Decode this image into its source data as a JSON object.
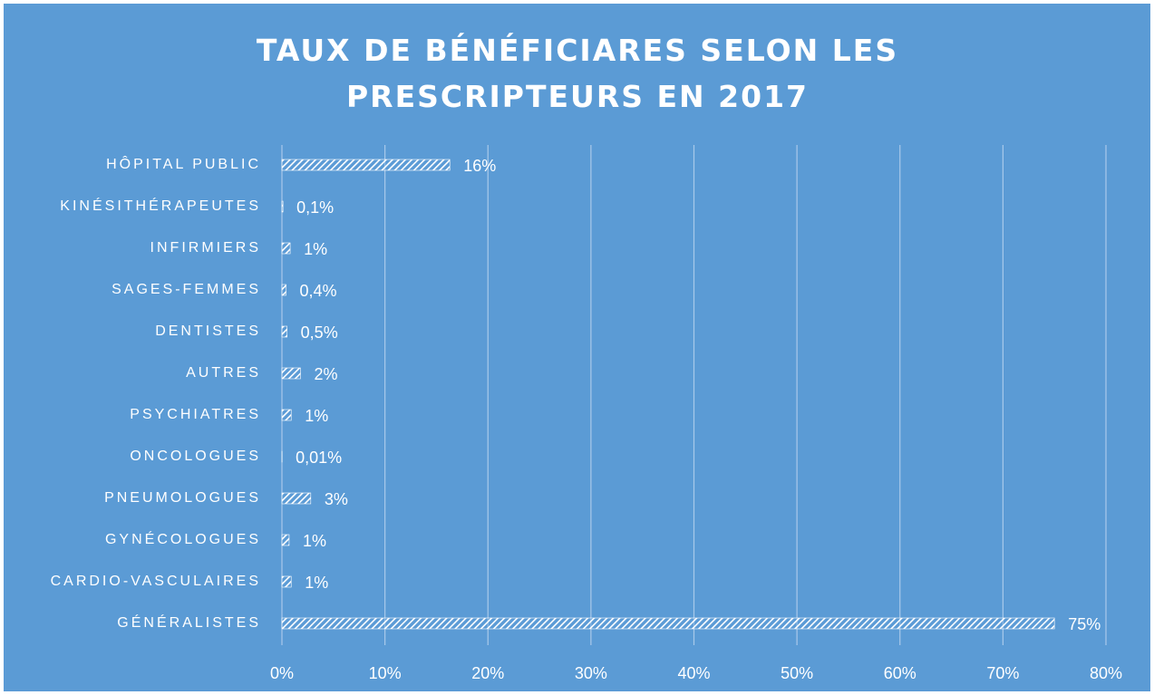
{
  "chart_data": {
    "type": "bar",
    "orientation": "horizontal",
    "title": "TAUX DE BÉNÉFICIARES SELON LES PRESCRIPTEURS EN 2017",
    "categories": [
      "HÔPITAL PUBLIC",
      "KINÉSITHÉRAPEUTES",
      "INFIRMIERS",
      "SAGES-FEMMES",
      "DENTISTES",
      "AUTRES",
      "PSYCHIATRES",
      "ONCOLOGUES",
      "PNEUMOLOGUES",
      "GYNÉCOLOGUES",
      "CARDIO-VASCULAIRES",
      "GÉNÉRALISTES"
    ],
    "values": [
      16.3,
      0.1,
      0.8,
      0.4,
      0.5,
      1.8,
      0.9,
      0.01,
      2.8,
      0.7,
      0.9,
      75
    ],
    "value_labels": [
      "16%",
      "0,1%",
      "1%",
      "0,4%",
      "0,5%",
      "2%",
      "1%",
      "0,01%",
      "3%",
      "1%",
      "1%",
      "75%"
    ],
    "color": "#ffffff",
    "hatch": true,
    "xlim": [
      0,
      80
    ],
    "xticks": [
      {
        "value": 0,
        "label": "0%"
      },
      {
        "value": 10,
        "label": "10%"
      },
      {
        "value": 20,
        "label": "20%"
      },
      {
        "value": 30,
        "label": "30%"
      },
      {
        "value": 40,
        "label": "40%"
      },
      {
        "value": 50,
        "label": "50%"
      },
      {
        "value": 60,
        "label": "60%"
      },
      {
        "value": 70,
        "label": "70%"
      },
      {
        "value": 80,
        "label": "80%"
      }
    ],
    "grid": true
  }
}
